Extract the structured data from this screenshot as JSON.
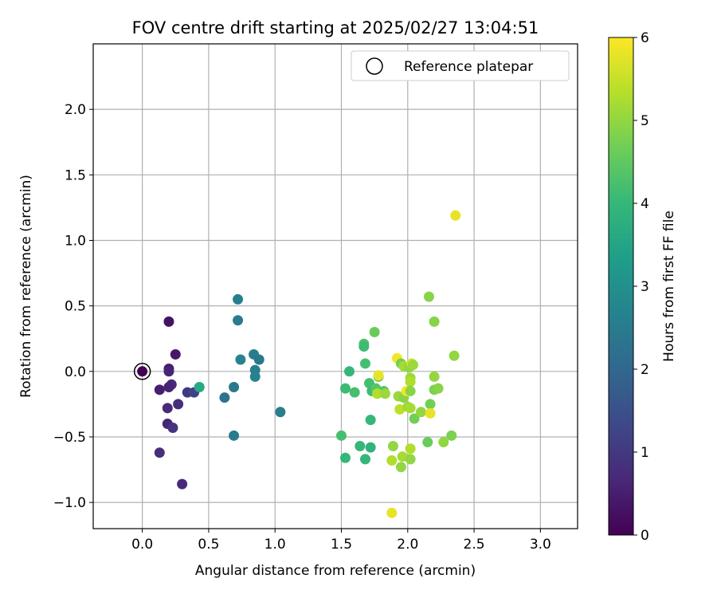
{
  "chart_data": {
    "type": "scatter",
    "title": "FOV centre drift starting at 2025/02/27 13:04:51",
    "xlabel": "Angular distance from reference (arcmin)",
    "ylabel": "Rotation from reference (arcmin)",
    "xlim": [
      -0.37,
      3.28
    ],
    "ylim": [
      -1.2,
      2.5
    ],
    "xticks": [
      {
        "value": 0.0,
        "label": "0.0"
      },
      {
        "value": 0.5,
        "label": "0.5"
      },
      {
        "value": 1.0,
        "label": "1.0"
      },
      {
        "value": 1.5,
        "label": "1.5"
      },
      {
        "value": 2.0,
        "label": "2.0"
      },
      {
        "value": 2.5,
        "label": "2.5"
      },
      {
        "value": 3.0,
        "label": "3.0"
      }
    ],
    "yticks": [
      {
        "value": -1.0,
        "label": "−1.0"
      },
      {
        "value": -0.5,
        "label": "−0.5"
      },
      {
        "value": 0.0,
        "label": "0.0"
      },
      {
        "value": 0.5,
        "label": "0.5"
      },
      {
        "value": 1.0,
        "label": "1.0"
      },
      {
        "value": 1.5,
        "label": "1.5"
      },
      {
        "value": 2.0,
        "label": "2.0"
      }
    ],
    "grid": true,
    "legend": {
      "placement": "top-right",
      "entries": [
        "Reference platepar"
      ]
    },
    "colorbar": {
      "label": "Hours from first FF file",
      "range": [
        0,
        6
      ],
      "ticks": [
        {
          "value": 0,
          "label": "0"
        },
        {
          "value": 1,
          "label": "1"
        },
        {
          "value": 2,
          "label": "2"
        },
        {
          "value": 3,
          "label": "3"
        },
        {
          "value": 4,
          "label": "4"
        },
        {
          "value": 5,
          "label": "5"
        },
        {
          "value": 6,
          "label": "6"
        }
      ],
      "colormap": [
        "#440154",
        "#482878",
        "#3e4989",
        "#31688e",
        "#26828e",
        "#1f9e89",
        "#35b779",
        "#6ece58",
        "#b5de2b",
        "#fde725"
      ]
    },
    "reference_point": {
      "x": 0.0,
      "y": 0.0
    },
    "points": [
      {
        "x": 0.0,
        "y": 0.0,
        "c": 0.0
      },
      {
        "x": 0.2,
        "y": 0.38,
        "c": 0.3
      },
      {
        "x": 0.25,
        "y": 0.13,
        "c": 0.4
      },
      {
        "x": 0.2,
        "y": 0.02,
        "c": 0.5
      },
      {
        "x": 0.2,
        "y": 0.0,
        "c": 0.6
      },
      {
        "x": 0.22,
        "y": -0.1,
        "c": 0.7
      },
      {
        "x": 0.13,
        "y": -0.14,
        "c": 0.5
      },
      {
        "x": 0.2,
        "y": -0.12,
        "c": 0.6
      },
      {
        "x": 0.27,
        "y": -0.25,
        "c": 0.8
      },
      {
        "x": 0.19,
        "y": -0.28,
        "c": 0.7
      },
      {
        "x": 0.19,
        "y": -0.4,
        "c": 0.6
      },
      {
        "x": 0.23,
        "y": -0.43,
        "c": 0.9
      },
      {
        "x": 0.13,
        "y": -0.62,
        "c": 0.8
      },
      {
        "x": 0.3,
        "y": -0.86,
        "c": 0.7
      },
      {
        "x": 0.34,
        "y": -0.16,
        "c": 1.0
      },
      {
        "x": 0.39,
        "y": -0.16,
        "c": 1.2
      },
      {
        "x": 0.43,
        "y": -0.12,
        "c": 3.6
      },
      {
        "x": 0.62,
        "y": -0.2,
        "c": 2.3
      },
      {
        "x": 0.69,
        "y": -0.12,
        "c": 2.4
      },
      {
        "x": 0.69,
        "y": -0.49,
        "c": 2.5
      },
      {
        "x": 0.72,
        "y": 0.55,
        "c": 2.6
      },
      {
        "x": 0.72,
        "y": 0.39,
        "c": 2.5
      },
      {
        "x": 0.74,
        "y": 0.09,
        "c": 2.7
      },
      {
        "x": 0.84,
        "y": 0.13,
        "c": 2.5
      },
      {
        "x": 0.85,
        "y": 0.01,
        "c": 2.6
      },
      {
        "x": 0.85,
        "y": -0.04,
        "c": 2.7
      },
      {
        "x": 0.88,
        "y": 0.09,
        "c": 2.4
      },
      {
        "x": 1.04,
        "y": -0.31,
        "c": 2.6
      },
      {
        "x": 1.5,
        "y": -0.49,
        "c": 4.2
      },
      {
        "x": 1.53,
        "y": -0.13,
        "c": 4.1
      },
      {
        "x": 1.53,
        "y": -0.66,
        "c": 4.0
      },
      {
        "x": 1.56,
        "y": 0.0,
        "c": 4.0
      },
      {
        "x": 1.6,
        "y": -0.16,
        "c": 4.2
      },
      {
        "x": 1.64,
        "y": -0.57,
        "c": 4.0
      },
      {
        "x": 1.67,
        "y": 0.21,
        "c": 4.3
      },
      {
        "x": 1.67,
        "y": 0.19,
        "c": 4.1
      },
      {
        "x": 1.68,
        "y": 0.06,
        "c": 4.2
      },
      {
        "x": 1.68,
        "y": -0.67,
        "c": 4.0
      },
      {
        "x": 1.71,
        "y": -0.09,
        "c": 4.2
      },
      {
        "x": 1.72,
        "y": -0.58,
        "c": 3.9
      },
      {
        "x": 1.72,
        "y": -0.37,
        "c": 4.0
      },
      {
        "x": 1.73,
        "y": -0.15,
        "c": 4.1
      },
      {
        "x": 1.75,
        "y": 0.3,
        "c": 4.6
      },
      {
        "x": 1.76,
        "y": -0.13,
        "c": 4.4
      },
      {
        "x": 1.78,
        "y": -0.04,
        "c": 4.5
      },
      {
        "x": 1.79,
        "y": -0.16,
        "c": 4.6
      },
      {
        "x": 1.82,
        "y": -0.15,
        "c": 4.4
      },
      {
        "x": 1.78,
        "y": -0.03,
        "c": 5.8
      },
      {
        "x": 1.77,
        "y": -0.17,
        "c": 5.3
      },
      {
        "x": 1.83,
        "y": -0.17,
        "c": 5.1
      },
      {
        "x": 1.88,
        "y": -1.08,
        "c": 5.8
      },
      {
        "x": 1.88,
        "y": -0.68,
        "c": 5.3
      },
      {
        "x": 1.89,
        "y": -0.57,
        "c": 5.0
      },
      {
        "x": 1.92,
        "y": 0.1,
        "c": 5.9
      },
      {
        "x": 1.93,
        "y": -0.19,
        "c": 5.1
      },
      {
        "x": 1.94,
        "y": -0.29,
        "c": 5.4
      },
      {
        "x": 1.95,
        "y": -0.73,
        "c": 5.0
      },
      {
        "x": 1.95,
        "y": 0.06,
        "c": 4.7
      },
      {
        "x": 1.96,
        "y": -0.65,
        "c": 5.2
      },
      {
        "x": 1.97,
        "y": -0.2,
        "c": 4.9
      },
      {
        "x": 1.97,
        "y": 0.04,
        "c": 5.2
      },
      {
        "x": 1.99,
        "y": -0.15,
        "c": 5.9
      },
      {
        "x": 2.0,
        "y": -0.27,
        "c": 5.1
      },
      {
        "x": 2.01,
        "y": 0.03,
        "c": 5.0
      },
      {
        "x": 2.02,
        "y": -0.05,
        "c": 5.1
      },
      {
        "x": 2.02,
        "y": -0.08,
        "c": 5.3
      },
      {
        "x": 2.02,
        "y": -0.15,
        "c": 4.9
      },
      {
        "x": 2.02,
        "y": -0.28,
        "c": 5.2
      },
      {
        "x": 2.02,
        "y": -0.59,
        "c": 5.3
      },
      {
        "x": 2.02,
        "y": -0.67,
        "c": 5.0
      },
      {
        "x": 2.03,
        "y": 0.06,
        "c": 5.6
      },
      {
        "x": 2.04,
        "y": 0.05,
        "c": 5.1
      },
      {
        "x": 2.05,
        "y": -0.36,
        "c": 4.7
      },
      {
        "x": 2.1,
        "y": -0.31,
        "c": 5.0
      },
      {
        "x": 2.15,
        "y": -0.54,
        "c": 4.6
      },
      {
        "x": 2.16,
        "y": 0.57,
        "c": 4.9
      },
      {
        "x": 2.17,
        "y": -0.25,
        "c": 4.7
      },
      {
        "x": 2.17,
        "y": -0.32,
        "c": 5.8
      },
      {
        "x": 2.2,
        "y": 0.38,
        "c": 4.9
      },
      {
        "x": 2.2,
        "y": -0.04,
        "c": 5.0
      },
      {
        "x": 2.2,
        "y": -0.14,
        "c": 4.8
      },
      {
        "x": 2.23,
        "y": -0.13,
        "c": 4.9
      },
      {
        "x": 2.27,
        "y": -0.54,
        "c": 5.0
      },
      {
        "x": 2.33,
        "y": -0.49,
        "c": 4.8
      },
      {
        "x": 2.35,
        "y": 0.12,
        "c": 5.0
      },
      {
        "x": 2.36,
        "y": 1.19,
        "c": 5.8
      }
    ]
  }
}
